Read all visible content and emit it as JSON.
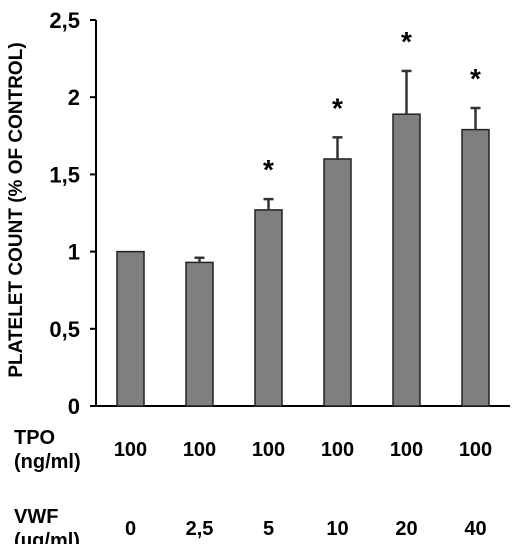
{
  "chart_data": {
    "type": "bar",
    "ylabel": "PLATELET COUNT (% OF CONTROL)",
    "xlabel": "",
    "ylim": [
      0,
      2.5
    ],
    "yticks": [
      0,
      0.5,
      1,
      1.5,
      2,
      2.5
    ],
    "ytick_labels": [
      "0",
      "0,5",
      "1",
      "1,5",
      "2",
      "2,5"
    ],
    "grid": false,
    "categories": [
      "0",
      "2,5",
      "5",
      "10",
      "20",
      "40"
    ],
    "values": [
      1.0,
      0.93,
      1.27,
      1.6,
      1.89,
      1.79
    ],
    "error_upper": [
      0.0,
      0.03,
      0.07,
      0.14,
      0.28,
      0.14
    ],
    "significance": [
      "",
      "",
      "*",
      "*",
      "*",
      "*"
    ],
    "bar_color": "#7f7f7f",
    "rows": [
      {
        "label_line1": "TPO",
        "label_line2": "(ng/ml)",
        "values": [
          "100",
          "100",
          "100",
          "100",
          "100",
          "100"
        ]
      },
      {
        "label_line1": "VWF",
        "label_line2": "(µg/ml)",
        "values": [
          "0",
          "2,5",
          "5",
          "10",
          "20",
          "40"
        ]
      }
    ]
  }
}
